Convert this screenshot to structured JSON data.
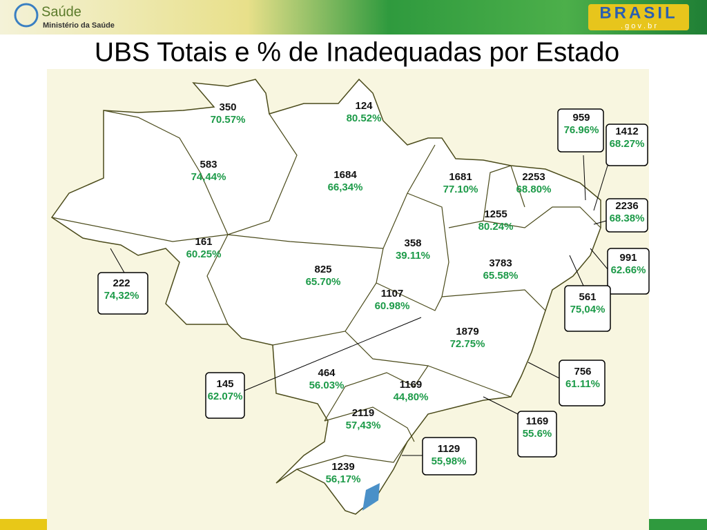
{
  "header": {
    "logo_title": "Saúde",
    "logo_subtitle": "Ministério da Saúde",
    "brand": "BRASIL",
    "brand_sub": ". g o v . b r"
  },
  "title": "UBS Totais e % de Inadequadas por Estado",
  "regions": [
    {
      "total": "350",
      "inadequate": "70.57%"
    },
    {
      "total": "124",
      "inadequate": "80.52%"
    },
    {
      "total": "583",
      "inadequate": "74,44%"
    },
    {
      "total": "1684",
      "inadequate": "66,34%"
    },
    {
      "total": "1681",
      "inadequate": "77.10%"
    },
    {
      "total": "2253",
      "inadequate": "68.80%"
    },
    {
      "total": "959",
      "inadequate": "76.96%"
    },
    {
      "total": "1412",
      "inadequate": "68.27%"
    },
    {
      "total": "2236",
      "inadequate": "68.38%"
    },
    {
      "total": "1255",
      "inadequate": "80.24%"
    },
    {
      "total": "991",
      "inadequate": "62.66%"
    },
    {
      "total": "161",
      "inadequate": "60.25%"
    },
    {
      "total": "358",
      "inadequate": "39.11%"
    },
    {
      "total": "222",
      "inadequate": "74,32%"
    },
    {
      "total": "825",
      "inadequate": "65.70%"
    },
    {
      "total": "3783",
      "inadequate": "65.58%"
    },
    {
      "total": "561",
      "inadequate": "75,04%"
    },
    {
      "total": "1107",
      "inadequate": "60.98%"
    },
    {
      "total": "1879",
      "inadequate": "72.75%"
    },
    {
      "total": "145",
      "inadequate": "62.07%"
    },
    {
      "total": "464",
      "inadequate": "56.03%"
    },
    {
      "total": "1169",
      "inadequate": "44,80%"
    },
    {
      "total": "756",
      "inadequate": "61.11%"
    },
    {
      "total": "1169",
      "inadequate": "55.6%"
    },
    {
      "total": "2119",
      "inadequate": "57,43%"
    },
    {
      "total": "1129",
      "inadequate": "55,98%"
    },
    {
      "total": "1239",
      "inadequate": "56,17%"
    }
  ]
}
